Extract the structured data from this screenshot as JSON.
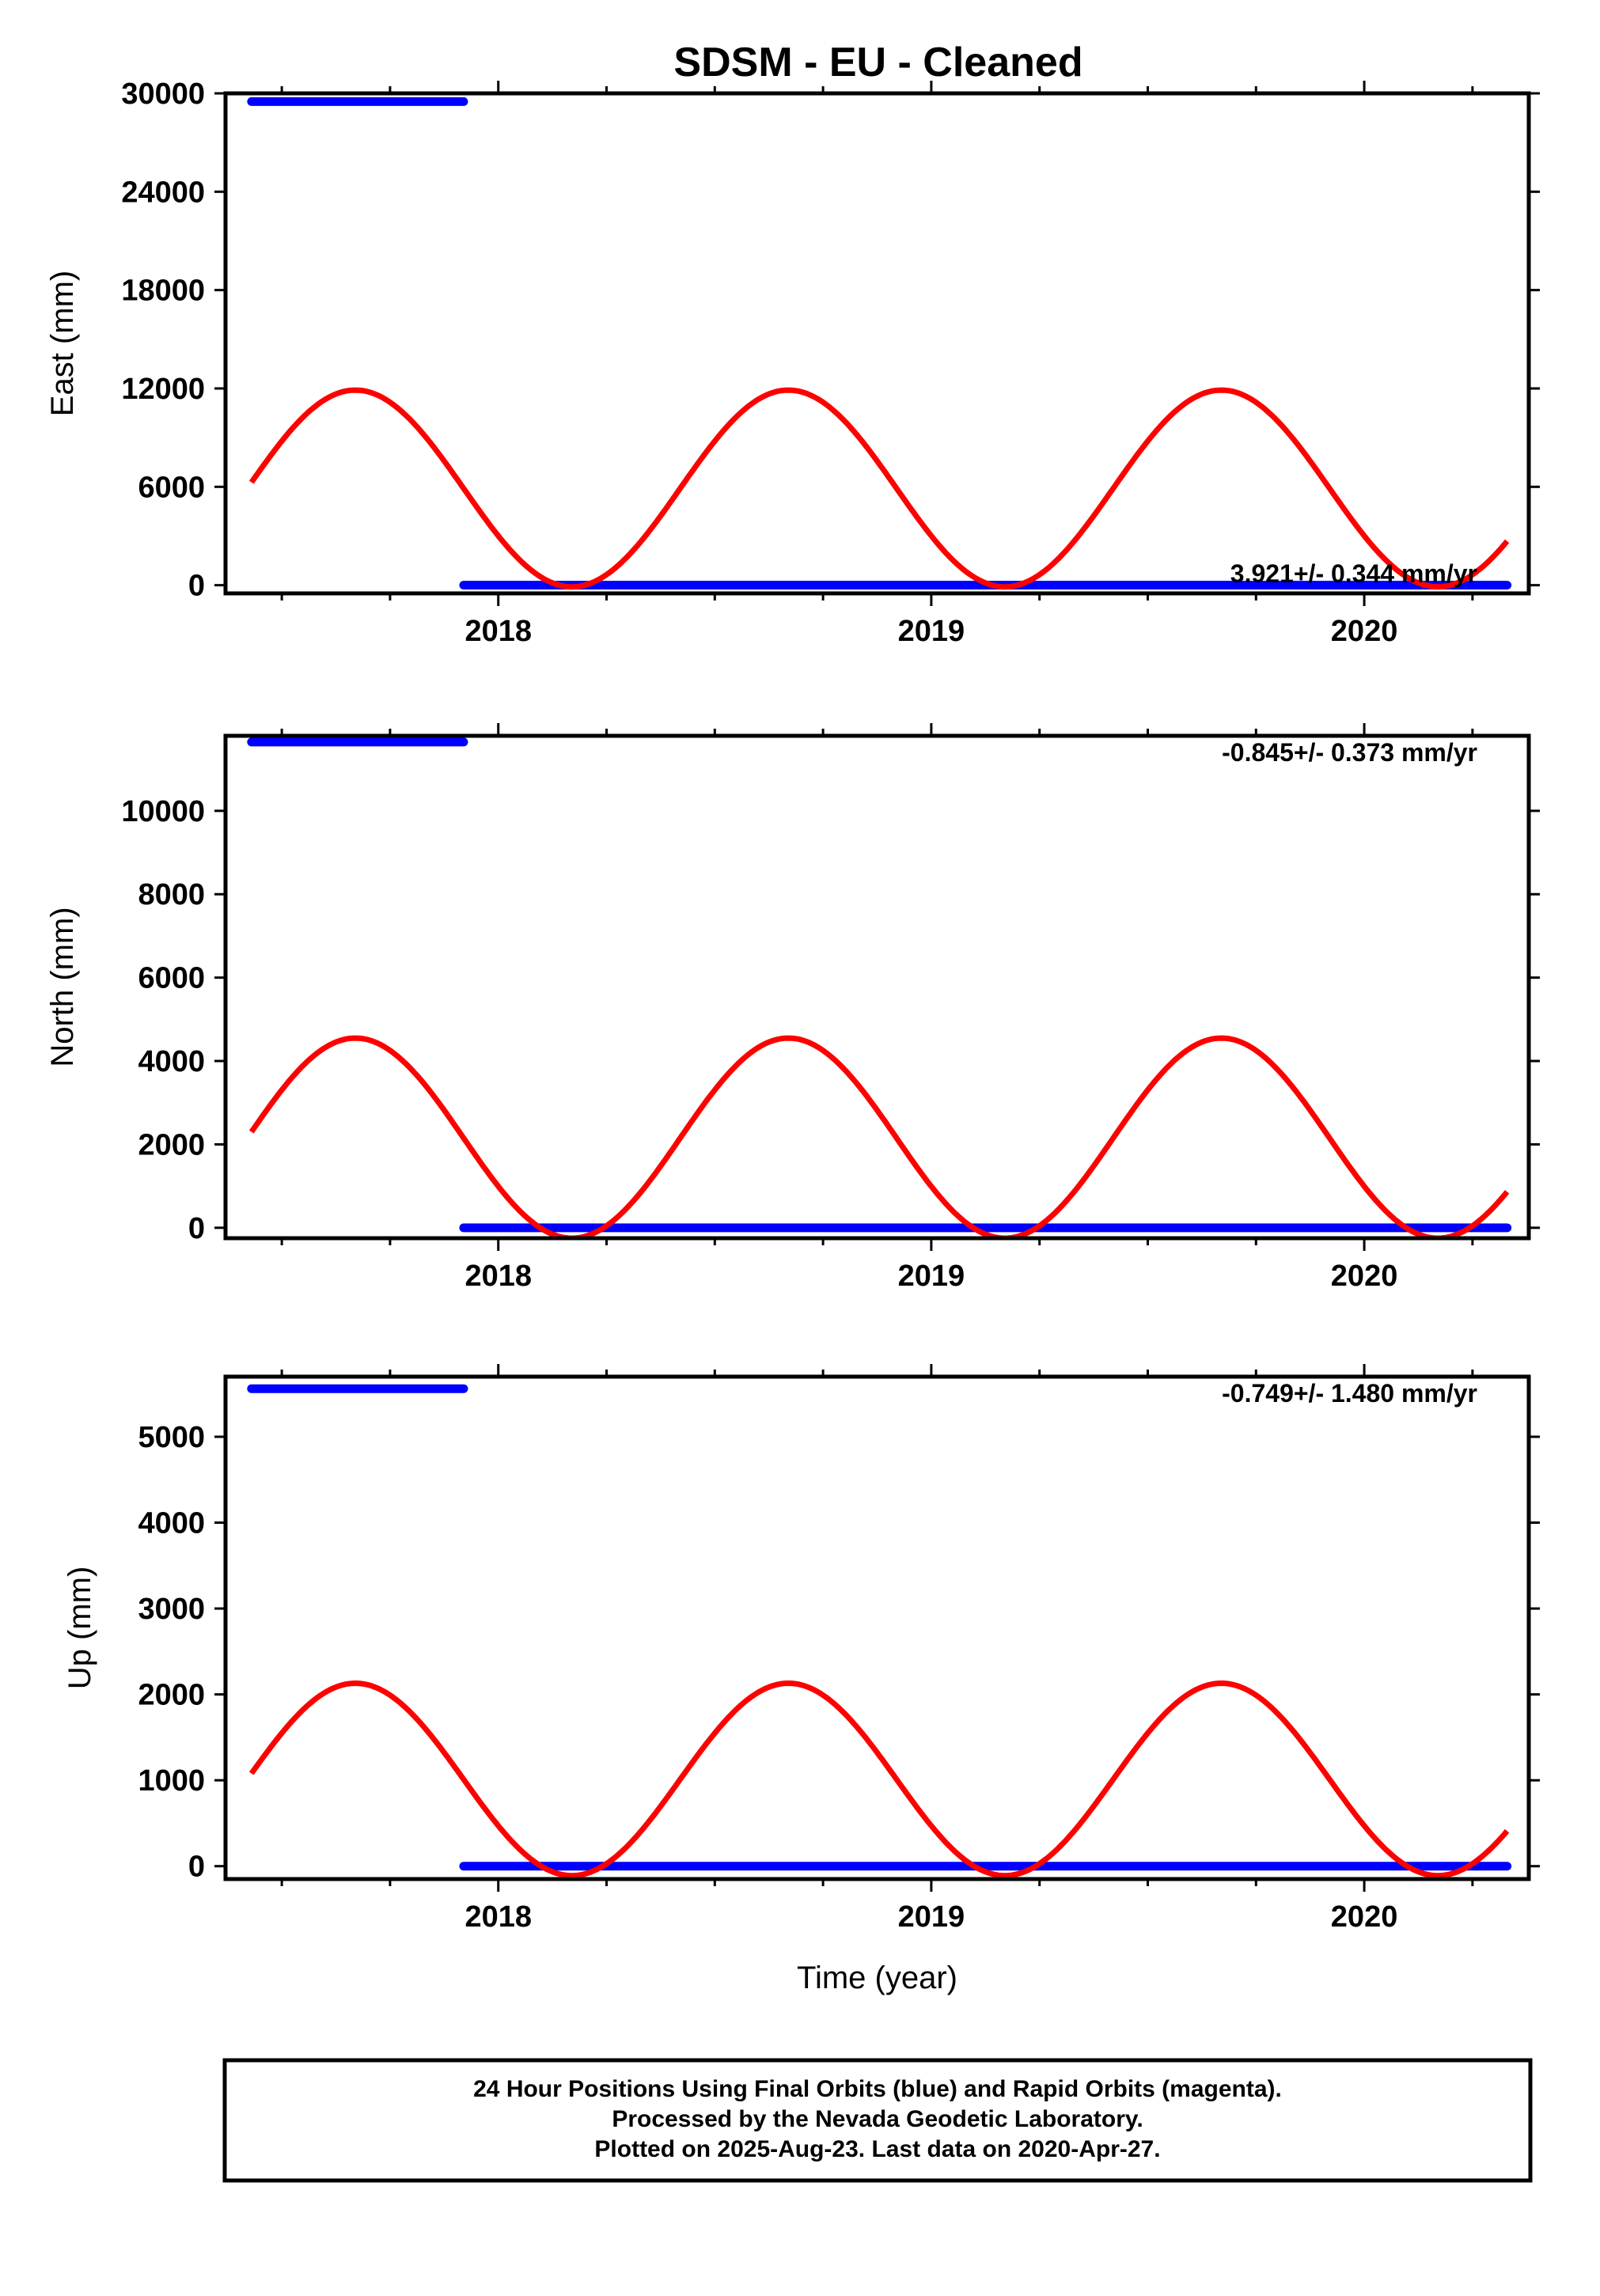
{
  "title": "SDSM  - EU - Cleaned",
  "colors": {
    "final_orbits": "#0000ff",
    "model_fit": "#ff0000",
    "frame": "#000000"
  },
  "footer": {
    "lines": [
      "24 Hour Positions Using Final Orbits (blue) and Rapid Orbits (magenta).",
      "Processed by the Nevada Geodetic Laboratory.",
      "Plotted on 2025-Aug-23. Last data on 2020-Apr-27."
    ]
  },
  "chart_data": [
    {
      "type": "scatter",
      "id": "east",
      "ylabel": "East (mm)",
      "xlabel": "",
      "xlim": [
        2017.37,
        2020.38
      ],
      "ylim": [
        -500,
        30000
      ],
      "xticks": [
        2018,
        2019,
        2020
      ],
      "xtick_labels": [
        "2018",
        "2019",
        "2020"
      ],
      "yticks": [
        0,
        6000,
        12000,
        18000,
        24000,
        30000
      ],
      "ytick_labels": [
        "0",
        "6000",
        "12000",
        "18000",
        "24000",
        "30000"
      ],
      "rate_label": "3.921+/- 0.344 mm/yr",
      "series": [
        {
          "kind": "points",
          "color": "#0000ff",
          "segments": [
            {
              "x": [
                2017.43,
                2017.92
              ],
              "y": 29500
            },
            {
              "x": [
                2017.92,
                2020.33
              ],
              "y": 0
            }
          ]
        },
        {
          "kind": "sinusoid",
          "color": "#ff0000",
          "period_yr": 1.0,
          "offset": 5900,
          "amplitude": 6000,
          "peak_year": 2017.67,
          "x_range": [
            2017.43,
            2020.33
          ]
        }
      ]
    },
    {
      "type": "scatter",
      "id": "north",
      "ylabel": "North (mm)",
      "xlabel": "",
      "xlim": [
        2017.37,
        2020.38
      ],
      "ylim": [
        -250,
        11800
      ],
      "xticks": [
        2018,
        2019,
        2020
      ],
      "xtick_labels": [
        "2018",
        "2019",
        "2020"
      ],
      "yticks": [
        0,
        2000,
        4000,
        6000,
        8000,
        10000
      ],
      "ytick_labels": [
        "0",
        "2000",
        "4000",
        "6000",
        "8000",
        "10000"
      ],
      "rate_label": "-0.845+/- 0.373 mm/yr",
      "series": [
        {
          "kind": "points",
          "color": "#0000ff",
          "segments": [
            {
              "x": [
                2017.43,
                2017.92
              ],
              "y": 11650
            },
            {
              "x": [
                2017.92,
                2020.33
              ],
              "y": 0
            }
          ]
        },
        {
          "kind": "sinusoid",
          "color": "#ff0000",
          "period_yr": 1.0,
          "offset": 2150,
          "amplitude": 2400,
          "peak_year": 2017.67,
          "x_range": [
            2017.43,
            2020.33
          ]
        }
      ]
    },
    {
      "type": "scatter",
      "id": "up",
      "ylabel": "Up (mm)",
      "xlabel": "Time (year)",
      "xlim": [
        2017.37,
        2020.38
      ],
      "ylim": [
        -150,
        5700
      ],
      "xticks": [
        2018,
        2019,
        2020
      ],
      "xtick_labels": [
        "2018",
        "2019",
        "2020"
      ],
      "yticks": [
        0,
        1000,
        2000,
        3000,
        4000,
        5000
      ],
      "ytick_labels": [
        "0",
        "1000",
        "2000",
        "3000",
        "4000",
        "5000"
      ],
      "rate_label": "-0.749+/- 1.480 mm/yr",
      "series": [
        {
          "kind": "points",
          "color": "#0000ff",
          "segments": [
            {
              "x": [
                2017.43,
                2017.92
              ],
              "y": 5560
            },
            {
              "x": [
                2017.92,
                2020.33
              ],
              "y": 0
            }
          ]
        },
        {
          "kind": "sinusoid",
          "color": "#ff0000",
          "period_yr": 1.0,
          "offset": 1010,
          "amplitude": 1120,
          "peak_year": 2017.67,
          "x_range": [
            2017.43,
            2020.33
          ]
        }
      ]
    }
  ]
}
